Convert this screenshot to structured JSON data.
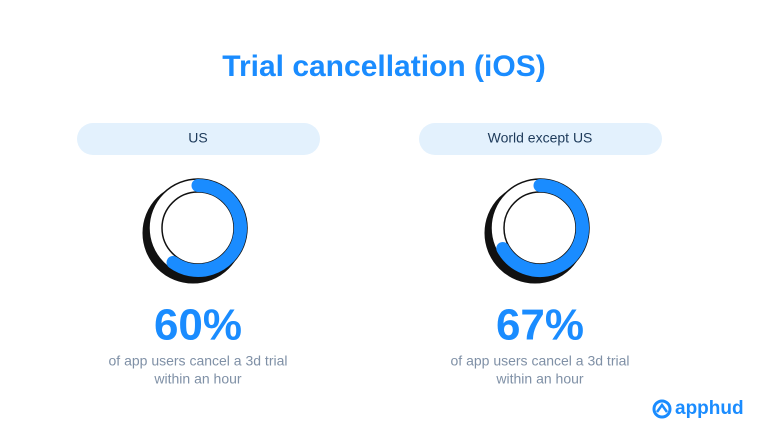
{
  "header": {
    "title": "Trial cancellation (iOS)"
  },
  "chart_data": [
    {
      "type": "donut",
      "title": "US",
      "values": [
        60
      ],
      "value_labels": [
        "60%"
      ],
      "color": "#1a8cff",
      "caption": [
        "of app users cancel a 3d trial",
        "within an hour"
      ]
    },
    {
      "type": "donut",
      "title": "World except US",
      "values": [
        67
      ],
      "value_labels": [
        "67%"
      ],
      "color": "#1a8cff",
      "caption": [
        "of app users cancel a 3d trial",
        "within an hour"
      ]
    }
  ],
  "footer": {
    "brand": "apphud"
  }
}
